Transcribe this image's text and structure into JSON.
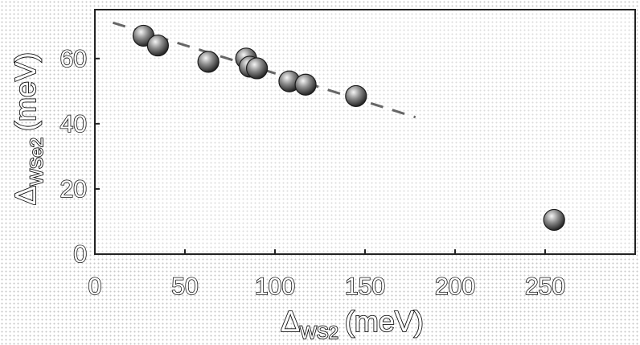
{
  "chart_data": {
    "type": "scatter",
    "xlabel": {
      "symbol": "Δ",
      "sub": "WS2",
      "unit": "(meV)"
    },
    "ylabel": {
      "symbol": "Δ",
      "sub": "WSe2",
      "unit": "(meV)"
    },
    "xlim": [
      0,
      300
    ],
    "ylim": [
      0,
      75
    ],
    "xticks": [
      0,
      50,
      100,
      150,
      200,
      250
    ],
    "yticks": [
      0,
      20,
      40,
      60
    ],
    "grid": false,
    "legend": "none",
    "points": [
      {
        "x": 27,
        "y": 67
      },
      {
        "x": 35,
        "y": 64
      },
      {
        "x": 63,
        "y": 59
      },
      {
        "x": 84,
        "y": 60
      },
      {
        "x": 86,
        "y": 57.5
      },
      {
        "x": 90,
        "y": 57
      },
      {
        "x": 108,
        "y": 53
      },
      {
        "x": 117,
        "y": 52
      },
      {
        "x": 145,
        "y": 48.5
      },
      {
        "x": 255,
        "y": 10.5
      }
    ],
    "fit_line": {
      "x": [
        10,
        178
      ],
      "y": [
        71,
        42
      ]
    },
    "colors": {
      "marker": "#8a8a8a",
      "marker_highlight": "#f5f5f5",
      "marker_edge": "#1a1a1a",
      "axes": "#222222",
      "fit_line": "#666666"
    }
  }
}
